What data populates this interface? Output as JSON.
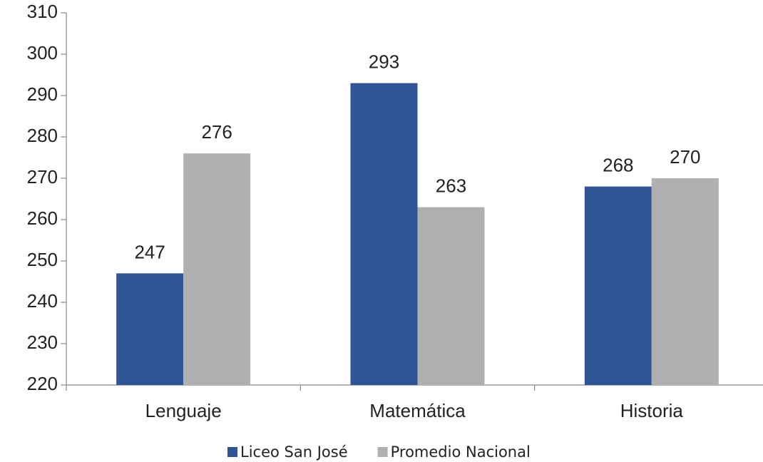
{
  "chart_data": {
    "type": "bar",
    "categories": [
      "Lenguaje",
      "Matemática",
      "Historia"
    ],
    "series": [
      {
        "name": "Liceo San José",
        "color": "#2f5597",
        "values": [
          247,
          293,
          268
        ]
      },
      {
        "name": "Promedio Nacional",
        "color": "#b0b0b0",
        "values": [
          276,
          263,
          270
        ]
      }
    ],
    "ylim": [
      220,
      310
    ],
    "yticks": [
      220,
      230,
      240,
      250,
      260,
      270,
      280,
      290,
      300,
      310
    ],
    "grid": false,
    "legend": "bottom"
  }
}
